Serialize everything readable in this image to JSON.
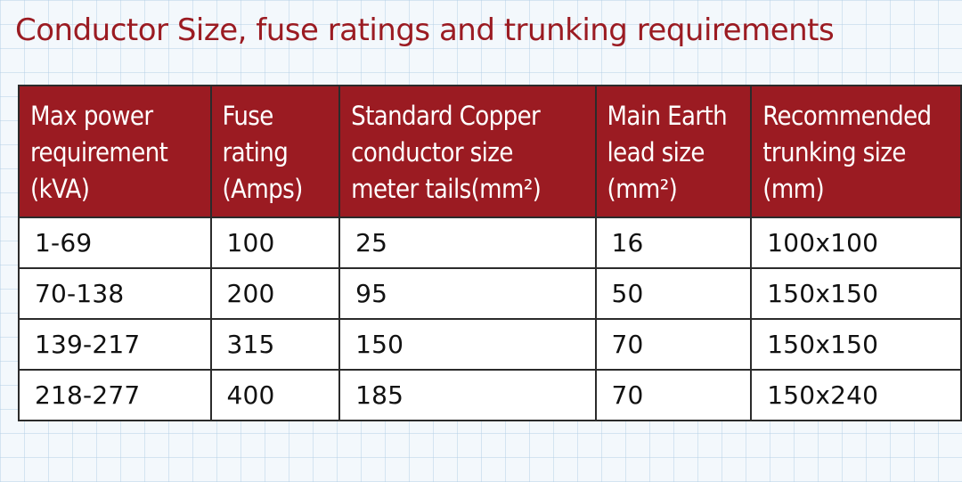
{
  "title": "Conductor Size, fuse ratings and trunking requirements",
  "table": {
    "headers": [
      {
        "lines": [
          "Max power",
          "requirement",
          "(kVA)"
        ]
      },
      {
        "lines": [
          "Fuse",
          "rating",
          "(Amps)"
        ]
      },
      {
        "lines": [
          "Standard Copper",
          "conductor size",
          "meter tails(mm²)"
        ]
      },
      {
        "lines": [
          "Main Earth",
          "lead size",
          "(mm²)"
        ]
      },
      {
        "lines": [
          "Recommended",
          "trunking size",
          "(mm)"
        ]
      }
    ],
    "rows": [
      [
        "1-69",
        "100",
        "25",
        "16",
        "100x100"
      ],
      [
        "70-138",
        "200",
        "95",
        "50",
        "150x150"
      ],
      [
        "139-217",
        "315",
        "150",
        "70",
        "150x150"
      ],
      [
        "218-277",
        "400",
        "185",
        "70",
        "150x240"
      ]
    ]
  },
  "colors": {
    "header_bg": "#9b1b22",
    "title": "#9b1b22",
    "grid_line": "#b0cce4",
    "border": "#2b2b2b"
  }
}
